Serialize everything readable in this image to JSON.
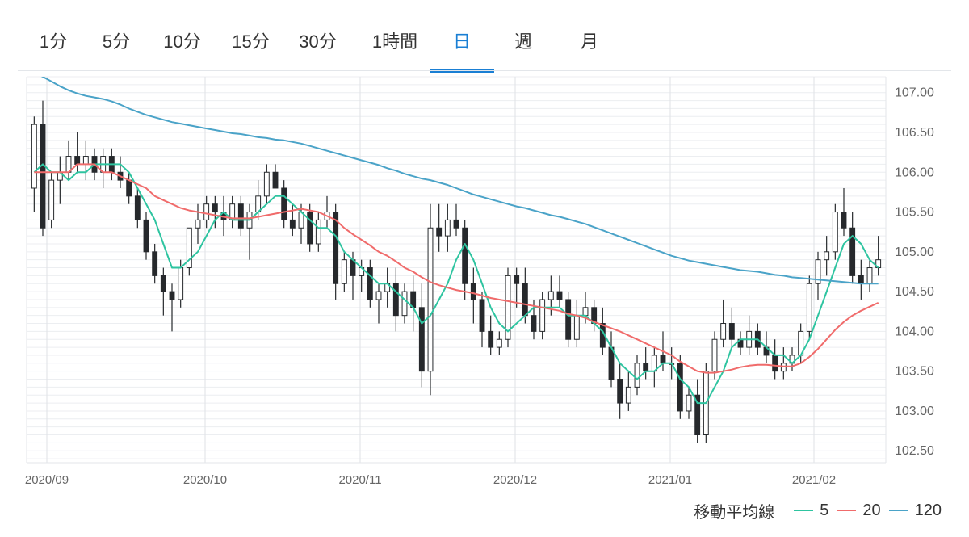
{
  "tabs": [
    {
      "label": "1分",
      "active": false
    },
    {
      "label": "5分",
      "active": false
    },
    {
      "label": "10分",
      "active": false
    },
    {
      "label": "15分",
      "active": false
    },
    {
      "label": "30分",
      "active": false
    },
    {
      "label": "1時間",
      "active": false
    },
    {
      "label": "日",
      "active": true
    },
    {
      "label": "週",
      "active": false
    },
    {
      "label": "月",
      "active": false
    }
  ],
  "legend": {
    "title": "移動平均線",
    "items": [
      {
        "label": "5",
        "color": "#2ec4a0"
      },
      {
        "label": "20",
        "color": "#f06b6b"
      },
      {
        "label": "120",
        "color": "#4aa3c8"
      }
    ]
  },
  "chart_data": {
    "type": "candlestick",
    "xlabel": "",
    "ylabel": "",
    "ylim": [
      102.35,
      107.2
    ],
    "y_ticks": [
      "107.00",
      "106.50",
      "106.00",
      "105.50",
      "105.00",
      "104.50",
      "104.00",
      "103.50",
      "103.00",
      "102.50"
    ],
    "x_ticks": [
      "2020/09",
      "2020/10",
      "2020/11",
      "2020/12",
      "2021/01",
      "2021/02"
    ],
    "grid": true,
    "colors": {
      "up": "#ffffff",
      "down": "#26292c",
      "wick": "#26292c"
    },
    "ohlc": [
      [
        105.8,
        106.7,
        105.5,
        106.6
      ],
      [
        106.6,
        106.9,
        105.2,
        105.3
      ],
      [
        105.4,
        106.0,
        105.3,
        105.9
      ],
      [
        105.9,
        106.2,
        105.6,
        106.0
      ],
      [
        106.0,
        106.4,
        105.9,
        106.2
      ],
      [
        106.2,
        106.5,
        106.0,
        106.1
      ],
      [
        106.1,
        106.4,
        105.9,
        106.2
      ],
      [
        106.2,
        106.3,
        105.9,
        106.0
      ],
      [
        106.0,
        106.3,
        105.8,
        106.2
      ],
      [
        106.2,
        106.3,
        105.9,
        106.0
      ],
      [
        106.0,
        106.2,
        105.8,
        105.9
      ],
      [
        105.9,
        106.0,
        105.6,
        105.7
      ],
      [
        105.7,
        105.8,
        105.3,
        105.4
      ],
      [
        105.4,
        105.5,
        104.9,
        105.0
      ],
      [
        105.0,
        105.1,
        104.6,
        104.7
      ],
      [
        104.7,
        104.8,
        104.2,
        104.5
      ],
      [
        104.5,
        104.6,
        104.0,
        104.4
      ],
      [
        104.4,
        104.9,
        104.3,
        104.8
      ],
      [
        104.8,
        105.3,
        104.7,
        105.3
      ],
      [
        105.3,
        105.6,
        105.1,
        105.4
      ],
      [
        105.4,
        105.7,
        105.3,
        105.6
      ],
      [
        105.6,
        105.7,
        105.3,
        105.5
      ],
      [
        105.5,
        105.7,
        105.2,
        105.4
      ],
      [
        105.4,
        105.7,
        105.3,
        105.6
      ],
      [
        105.6,
        105.7,
        105.2,
        105.3
      ],
      [
        105.3,
        105.6,
        104.9,
        105.5
      ],
      [
        105.5,
        105.9,
        105.4,
        105.7
      ],
      [
        105.7,
        106.1,
        105.6,
        106.0
      ],
      [
        106.0,
        106.1,
        105.8,
        105.8
      ],
      [
        105.8,
        105.9,
        105.3,
        105.4
      ],
      [
        105.4,
        105.6,
        105.2,
        105.3
      ],
      [
        105.3,
        105.6,
        105.1,
        105.5
      ],
      [
        105.5,
        105.6,
        105.0,
        105.1
      ],
      [
        105.1,
        105.5,
        105.0,
        105.4
      ],
      [
        105.4,
        105.7,
        105.3,
        105.5
      ],
      [
        105.5,
        105.6,
        104.4,
        104.6
      ],
      [
        104.6,
        105.0,
        104.5,
        104.9
      ],
      [
        104.9,
        105.0,
        104.4,
        104.7
      ],
      [
        104.7,
        104.9,
        104.5,
        104.8
      ],
      [
        104.8,
        104.9,
        104.3,
        104.4
      ],
      [
        104.4,
        104.6,
        104.1,
        104.5
      ],
      [
        104.5,
        104.8,
        104.3,
        104.6
      ],
      [
        104.6,
        104.8,
        104.0,
        104.2
      ],
      [
        104.2,
        104.6,
        104.1,
        104.5
      ],
      [
        104.5,
        104.7,
        104.0,
        104.3
      ],
      [
        104.3,
        104.6,
        103.3,
        103.5
      ],
      [
        103.5,
        105.6,
        103.2,
        105.3
      ],
      [
        105.3,
        105.6,
        105.0,
        105.2
      ],
      [
        105.2,
        105.6,
        105.0,
        105.4
      ],
      [
        105.4,
        105.6,
        105.2,
        105.3
      ],
      [
        105.3,
        105.4,
        104.4,
        104.6
      ],
      [
        104.6,
        104.8,
        104.1,
        104.4
      ],
      [
        104.4,
        104.5,
        103.8,
        104.0
      ],
      [
        104.0,
        104.2,
        103.7,
        103.8
      ],
      [
        103.8,
        104.0,
        103.7,
        103.9
      ],
      [
        103.9,
        104.8,
        103.8,
        104.7
      ],
      [
        104.7,
        104.8,
        104.3,
        104.6
      ],
      [
        104.6,
        104.8,
        104.1,
        104.2
      ],
      [
        104.2,
        104.4,
        103.9,
        104.0
      ],
      [
        104.0,
        104.5,
        103.9,
        104.4
      ],
      [
        104.4,
        104.7,
        104.2,
        104.5
      ],
      [
        104.5,
        104.7,
        104.3,
        104.4
      ],
      [
        104.4,
        104.5,
        103.8,
        103.9
      ],
      [
        103.9,
        104.4,
        103.8,
        104.2
      ],
      [
        104.2,
        104.5,
        104.1,
        104.3
      ],
      [
        104.3,
        104.4,
        104.0,
        104.1
      ],
      [
        104.1,
        104.3,
        103.7,
        103.8
      ],
      [
        103.8,
        104.0,
        103.3,
        103.4
      ],
      [
        103.4,
        103.6,
        102.9,
        103.1
      ],
      [
        103.1,
        103.5,
        103.0,
        103.3
      ],
      [
        103.3,
        103.7,
        103.2,
        103.6
      ],
      [
        103.6,
        103.8,
        103.4,
        103.5
      ],
      [
        103.5,
        103.8,
        103.3,
        103.7
      ],
      [
        103.7,
        104.0,
        103.5,
        103.6
      ],
      [
        103.6,
        103.8,
        103.4,
        103.6
      ],
      [
        103.6,
        103.7,
        102.9,
        103.0
      ],
      [
        103.0,
        103.3,
        102.9,
        103.2
      ],
      [
        103.2,
        103.4,
        102.6,
        102.7
      ],
      [
        102.7,
        103.6,
        102.6,
        103.5
      ],
      [
        103.5,
        104.0,
        103.4,
        103.9
      ],
      [
        103.9,
        104.4,
        103.8,
        104.1
      ],
      [
        104.1,
        104.3,
        103.8,
        103.9
      ],
      [
        103.9,
        104.0,
        103.7,
        103.8
      ],
      [
        103.8,
        104.2,
        103.7,
        104.0
      ],
      [
        104.0,
        104.1,
        103.7,
        103.8
      ],
      [
        103.8,
        104.0,
        103.6,
        103.7
      ],
      [
        103.7,
        103.9,
        103.4,
        103.5
      ],
      [
        103.5,
        103.8,
        103.4,
        103.6
      ],
      [
        103.6,
        103.8,
        103.5,
        103.7
      ],
      [
        103.7,
        104.1,
        103.6,
        104.0
      ],
      [
        104.0,
        104.7,
        103.9,
        104.6
      ],
      [
        104.6,
        105.0,
        104.4,
        104.9
      ],
      [
        104.9,
        105.2,
        104.7,
        105.0
      ],
      [
        105.0,
        105.6,
        104.9,
        105.5
      ],
      [
        105.5,
        105.8,
        105.2,
        105.3
      ],
      [
        105.3,
        105.5,
        104.6,
        104.7
      ],
      [
        104.7,
        104.9,
        104.4,
        104.6
      ],
      [
        104.6,
        104.9,
        104.5,
        104.8
      ],
      [
        104.8,
        105.2,
        104.7,
        104.9
      ]
    ],
    "series": [
      {
        "name": "5",
        "color": "#2ec4a0",
        "values": [
          106.0,
          106.1,
          106.0,
          106.0,
          105.9,
          106.0,
          106.0,
          106.1,
          106.1,
          106.1,
          106.1,
          106.0,
          105.8,
          105.6,
          105.4,
          105.1,
          104.8,
          104.8,
          104.9,
          105.0,
          105.2,
          105.4,
          105.5,
          105.4,
          105.4,
          105.4,
          105.5,
          105.6,
          105.7,
          105.7,
          105.6,
          105.5,
          105.4,
          105.3,
          105.3,
          105.2,
          105.0,
          104.9,
          104.8,
          104.7,
          104.6,
          104.6,
          104.5,
          104.4,
          104.3,
          104.1,
          104.2,
          104.4,
          104.6,
          104.9,
          105.1,
          104.9,
          104.6,
          104.3,
          104.1,
          104.0,
          104.1,
          104.2,
          104.3,
          104.3,
          104.3,
          104.3,
          104.2,
          104.2,
          104.2,
          104.1,
          104.0,
          103.8,
          103.6,
          103.5,
          103.4,
          103.5,
          103.5,
          103.6,
          103.6,
          103.4,
          103.3,
          103.1,
          103.1,
          103.3,
          103.5,
          103.8,
          103.9,
          103.9,
          103.9,
          103.8,
          103.7,
          103.7,
          103.6,
          103.7,
          103.9,
          104.2,
          104.5,
          104.8,
          105.1,
          105.2,
          105.1,
          104.9,
          104.8
        ]
      },
      {
        "name": "20",
        "color": "#f06b6b",
        "values": [
          106.0,
          106.0,
          106.0,
          106.0,
          106.0,
          106.1,
          106.1,
          106.1,
          106.0,
          106.0,
          105.95,
          105.9,
          105.85,
          105.8,
          105.7,
          105.65,
          105.6,
          105.55,
          105.52,
          105.5,
          105.48,
          105.46,
          105.44,
          105.42,
          105.42,
          105.42,
          105.44,
          105.46,
          105.48,
          105.5,
          105.52,
          105.54,
          105.52,
          105.5,
          105.45,
          105.4,
          105.3,
          105.22,
          105.15,
          105.08,
          105.0,
          104.95,
          104.88,
          104.8,
          104.75,
          104.68,
          104.62,
          104.58,
          104.55,
          104.52,
          104.5,
          104.48,
          104.45,
          104.42,
          104.4,
          104.38,
          104.36,
          104.34,
          104.32,
          104.3,
          104.28,
          104.26,
          104.22,
          104.2,
          104.17,
          104.12,
          104.08,
          104.04,
          104.0,
          103.95,
          103.9,
          103.85,
          103.8,
          103.75,
          103.7,
          103.62,
          103.56,
          103.5,
          103.48,
          103.48,
          103.5,
          103.52,
          103.55,
          103.57,
          103.58,
          103.58,
          103.57,
          103.56,
          103.56,
          103.6,
          103.68,
          103.78,
          103.9,
          104.02,
          104.12,
          104.2,
          104.26,
          104.31,
          104.36
        ]
      },
      {
        "name": "120",
        "color": "#4aa3c8",
        "values": [
          107.25,
          107.2,
          107.14,
          107.08,
          107.03,
          106.99,
          106.96,
          106.94,
          106.92,
          106.89,
          106.85,
          106.8,
          106.76,
          106.72,
          106.69,
          106.66,
          106.63,
          106.61,
          106.59,
          106.57,
          106.55,
          106.53,
          106.51,
          106.49,
          106.48,
          106.46,
          106.44,
          106.43,
          106.41,
          106.4,
          106.38,
          106.36,
          106.33,
          106.3,
          106.27,
          106.24,
          106.21,
          106.18,
          106.15,
          106.12,
          106.09,
          106.05,
          106.02,
          105.98,
          105.95,
          105.92,
          105.9,
          105.87,
          105.84,
          105.8,
          105.76,
          105.72,
          105.69,
          105.66,
          105.63,
          105.6,
          105.57,
          105.55,
          105.52,
          105.49,
          105.46,
          105.44,
          105.41,
          105.38,
          105.35,
          105.31,
          105.27,
          105.23,
          105.19,
          105.15,
          105.11,
          105.07,
          105.03,
          104.99,
          104.95,
          104.92,
          104.89,
          104.87,
          104.85,
          104.83,
          104.81,
          104.79,
          104.77,
          104.76,
          104.75,
          104.73,
          104.71,
          104.7,
          104.68,
          104.67,
          104.66,
          104.65,
          104.64,
          104.63,
          104.62,
          104.61,
          104.6,
          104.6,
          104.6
        ]
      }
    ]
  }
}
